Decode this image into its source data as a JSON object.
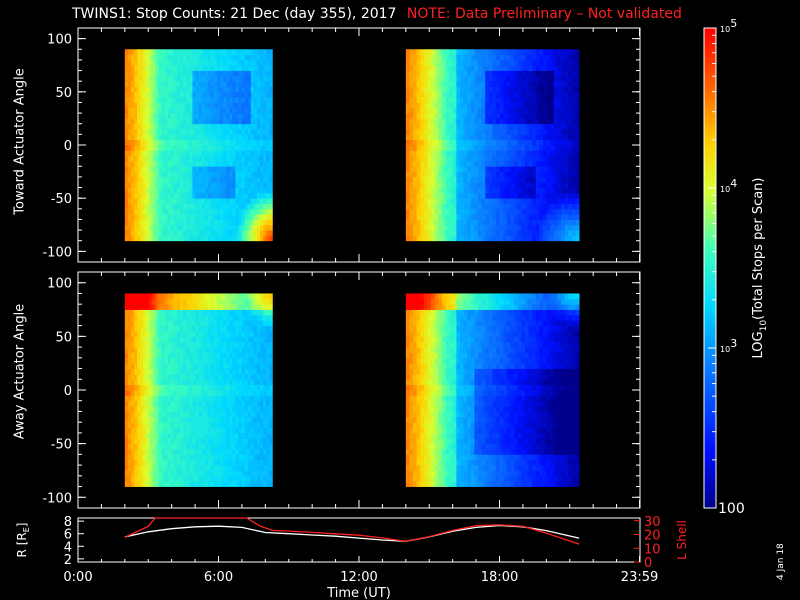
{
  "title": "TWINS1: Stop Counts: 21 Dec (day 355), 2017",
  "note": "NOTE: Data Preliminary – Not validated",
  "date_stamp": "4 Jan 18",
  "chart_data": [
    {
      "type": "heatmap",
      "panel": "toward",
      "ylabel": "Toward Actuator Angle",
      "y_ticks": [
        "100",
        "50",
        "0",
        "-50",
        "-100"
      ],
      "y_tick_values": [
        100,
        50,
        0,
        -50,
        -100
      ],
      "ylim": [
        -110,
        110
      ],
      "xlim_hours": [
        0,
        24
      ],
      "data_hours": [
        [
          2.0,
          8.3
        ],
        [
          14.0,
          21.4
        ]
      ],
      "angle_range": [
        -90,
        90
      ],
      "log10_counts_median": [
        3.7,
        3.0
      ]
    },
    {
      "type": "heatmap",
      "panel": "away",
      "ylabel": "Away Actuator Angle",
      "y_ticks": [
        "100",
        "50",
        "0",
        "-50",
        "-100"
      ],
      "y_tick_values": [
        100,
        50,
        0,
        -50,
        -100
      ],
      "ylim": [
        -110,
        110
      ],
      "xlim_hours": [
        0,
        24
      ],
      "data_hours": [
        [
          2.0,
          8.3
        ],
        [
          14.0,
          21.4
        ]
      ],
      "angle_range": [
        -90,
        90
      ],
      "log10_counts_median": [
        3.6,
        2.9
      ]
    },
    {
      "type": "line",
      "panel": "orbit",
      "ylabel_left": "R [R",
      "ylabel_left_sub": "E",
      "ylabel_left_end": "]",
      "ylabel_right": "L Shell",
      "y_left_ticks": [
        "8",
        "6",
        "4",
        "2"
      ],
      "y_left_values": [
        8,
        6,
        4,
        2
      ],
      "ylim_left": [
        1.5,
        8.5
      ],
      "y_right_ticks": [
        "30",
        "20",
        "10",
        "0"
      ],
      "y_right_values": [
        30,
        20,
        10,
        0
      ],
      "ylim_right": [
        0,
        32
      ],
      "x_ticks": [
        "0:00",
        "6:00",
        "12:00",
        "18:00",
        "23:59"
      ],
      "x_tick_hours": [
        0,
        6,
        12,
        18,
        23.98
      ],
      "xlabel": "Time (UT)",
      "series": [
        {
          "axis": "left",
          "color": "#ffffff",
          "x": [
            2.0,
            3.0,
            4.0,
            5.0,
            6.0,
            7.0,
            8.0,
            9.0,
            10.0,
            11.0,
            12.0,
            13.0,
            14.0,
            15.0,
            16.0,
            17.0,
            18.0,
            19.0,
            20.0,
            21.4
          ],
          "y": [
            5.5,
            6.3,
            6.8,
            7.1,
            7.2,
            7.0,
            6.2,
            6.0,
            5.8,
            5.6,
            5.3,
            5.0,
            4.8,
            5.5,
            6.4,
            7.0,
            7.3,
            7.1,
            6.5,
            5.3
          ]
        },
        {
          "axis": "right",
          "color": "#ff2020",
          "x": [
            2.0,
            3.0,
            3.3,
            7.2,
            7.8,
            8.3,
            9.0,
            10.0,
            11.0,
            12.0,
            13.0,
            14.0,
            15.0,
            16.0,
            17.0,
            18.0,
            19.0,
            20.0,
            21.4
          ],
          "y": [
            18.0,
            26.0,
            32.0,
            32.0,
            26.0,
            23.0,
            22.5,
            21.5,
            20.5,
            19.5,
            17.5,
            15.0,
            18.5,
            23.0,
            26.5,
            27.0,
            26.0,
            21.0,
            13.0
          ]
        }
      ]
    }
  ],
  "colorbar": {
    "label": "LOG10(Total Stops per Scan)",
    "label_pre": "LOG",
    "label_sub": "10",
    "label_post": "(Total Stops per Scan)",
    "range_log10": [
      2,
      5
    ],
    "ticks": [
      {
        "value": 5,
        "base": "10",
        "exp": "5"
      },
      {
        "value": 4,
        "base": "10",
        "exp": "4"
      },
      {
        "value": 3,
        "base": "10",
        "exp": "3"
      },
      {
        "value": 2,
        "text": "100"
      }
    ]
  }
}
